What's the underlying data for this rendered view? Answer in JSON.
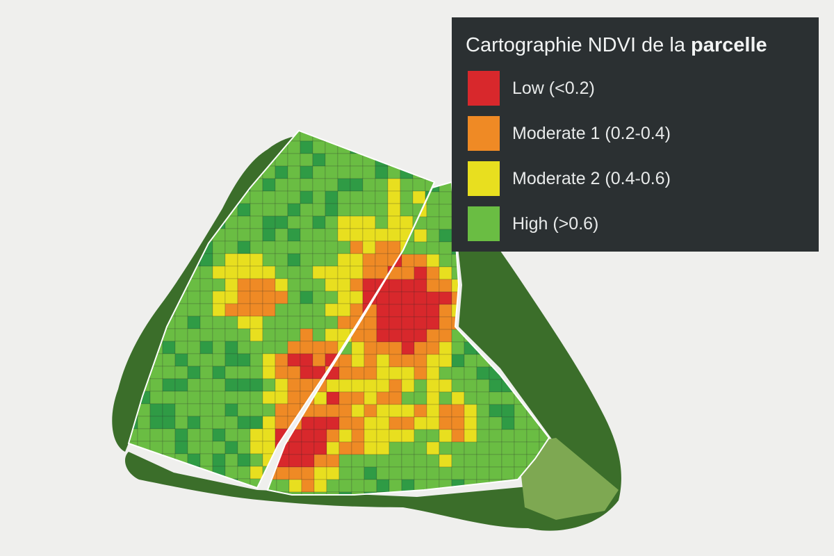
{
  "legend": {
    "title_prefix": "Cartographie NDVI de la ",
    "title_bold": "parcelle",
    "classes": [
      {
        "label": "Low (<0.2)",
        "color": "#d8282c"
      },
      {
        "label": "Moderate 1 (0.2-0.4)",
        "color": "#ef8a25"
      },
      {
        "label": "Moderate 2 (0.4-0.6)",
        "color": "#e8df1f"
      },
      {
        "label": "High (>0.6)",
        "color": "#6abd43"
      }
    ]
  },
  "map": {
    "parcel_count": 2,
    "colors": {
      "low": "#d8282c",
      "moderate_1": "#ef8a25",
      "moderate_2": "#e8df1f",
      "high": "#6abd43",
      "very_high": "#2f9b45",
      "vegetation_border": "#3b6e2a",
      "parcel_outline": "#ffffff"
    }
  }
}
